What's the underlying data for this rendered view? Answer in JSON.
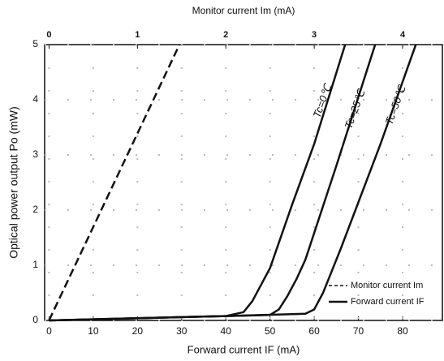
{
  "chart_data": {
    "type": "line",
    "xlabel": "Forward current IF (mA)",
    "x2label": "Monitor current Im (mA)",
    "ylabel": "Optical power output Po (mW)",
    "xlim": [
      -1,
      89
    ],
    "xticks": [
      0,
      10,
      20,
      30,
      40,
      50,
      60,
      70,
      80
    ],
    "x2lim": [
      -0.05,
      4.45
    ],
    "x2ticks": [
      0,
      1,
      2,
      3,
      4
    ],
    "ylim": [
      0,
      5
    ],
    "yticks": [
      0,
      1,
      2,
      3,
      4,
      5
    ],
    "grid": true,
    "series": [
      {
        "axis": "x2",
        "color": "#111111",
        "dash": true,
        "x": [
          0,
          1.475
        ],
        "values": [
          0,
          5
        ]
      },
      {
        "name": "Tc=0℃",
        "color": "#111111",
        "x": [
          0,
          10,
          20,
          30,
          40,
          44,
          46,
          48,
          50,
          55,
          60,
          67
        ],
        "values": [
          0,
          0.02,
          0.04,
          0.06,
          0.08,
          0.15,
          0.35,
          0.65,
          0.95,
          2.1,
          3.2,
          5
        ]
      },
      {
        "name": "Tc=25℃",
        "color": "#111111",
        "x": [
          0,
          30,
          40,
          50,
          52,
          54,
          56,
          58,
          65,
          73.8
        ],
        "values": [
          0,
          0.06,
          0.08,
          0.1,
          0.2,
          0.45,
          0.75,
          1.1,
          2.8,
          5
        ]
      },
      {
        "name": "Tc=50℃",
        "color": "#111111",
        "x": [
          0,
          40,
          58,
          60,
          62,
          64,
          66,
          75,
          83
        ],
        "values": [
          0,
          0.08,
          0.12,
          0.2,
          0.5,
          0.9,
          1.3,
          3.2,
          5
        ]
      }
    ],
    "legend": [
      {
        "label": "Monitor current Im",
        "dash": true
      },
      {
        "label": "Forward current IF",
        "dash": false
      }
    ],
    "legend_position": "lower right"
  }
}
